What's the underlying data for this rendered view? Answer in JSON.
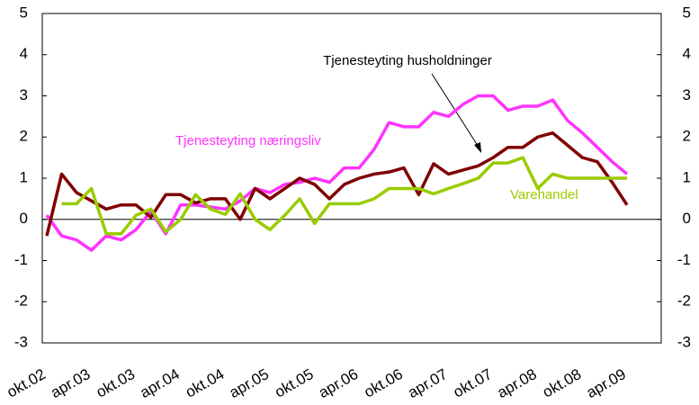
{
  "chart_data": {
    "type": "line",
    "categories": [
      "okt.02",
      null,
      null,
      "apr.03",
      null,
      null,
      "okt.03",
      null,
      null,
      "apr.04",
      null,
      null,
      "okt.04",
      null,
      null,
      "apr.05",
      null,
      null,
      "okt.05",
      null,
      null,
      "apr.06",
      null,
      null,
      "okt.06",
      null,
      null,
      "apr.07",
      null,
      null,
      "okt.07",
      null,
      null,
      "apr.08",
      null,
      null,
      "okt.08",
      null,
      null,
      "apr.09"
    ],
    "series": [
      {
        "name": "Tjenesteyting næringsliv",
        "color": "#ff33ff",
        "values": [
          0.1,
          -0.4,
          -0.5,
          -0.75,
          -0.4,
          -0.5,
          -0.25,
          0.2,
          -0.35,
          0.35,
          0.35,
          0.3,
          0.25,
          0.45,
          0.75,
          0.65,
          0.85,
          0.9,
          1.0,
          0.9,
          1.25,
          1.25,
          1.7,
          2.35,
          2.25,
          2.25,
          2.6,
          2.5,
          2.8,
          3.0,
          3.0,
          2.65,
          2.75,
          2.75,
          2.9,
          2.4,
          2.1,
          1.75,
          1.4,
          1.1
        ]
      },
      {
        "name": "Tjenesteyting husholdninger",
        "color": "#800000",
        "values": [
          -0.4,
          1.1,
          0.65,
          0.45,
          0.25,
          0.35,
          0.35,
          0.05,
          0.6,
          0.6,
          0.4,
          0.5,
          0.5,
          0.0,
          0.75,
          0.5,
          0.75,
          1.0,
          0.85,
          0.5,
          0.85,
          1.0,
          1.1,
          1.15,
          1.25,
          0.6,
          1.35,
          1.1,
          1.2,
          1.3,
          1.5,
          1.75,
          1.75,
          2.0,
          2.1,
          1.8,
          1.5,
          1.4,
          0.9,
          0.35
        ]
      },
      {
        "name": "Varehandel",
        "color": "#99cc00",
        "values": [
          null,
          0.38,
          0.38,
          0.75,
          -0.35,
          -0.35,
          0.1,
          0.25,
          -0.3,
          0.0,
          0.6,
          0.25,
          0.12,
          0.62,
          0.0,
          -0.25,
          0.1,
          0.5,
          -0.1,
          0.38,
          0.38,
          0.38,
          0.5,
          0.75,
          0.75,
          0.75,
          0.62,
          0.75,
          0.87,
          1.0,
          1.37,
          1.37,
          1.5,
          0.75,
          1.1,
          1.0,
          1.0,
          1.0,
          1.0,
          1.0
        ]
      }
    ],
    "ylim": [
      -3,
      5
    ],
    "yticks": [
      -3,
      -2,
      -1,
      0,
      1,
      2,
      3,
      4,
      5
    ],
    "y2lim": [
      -3,
      5
    ],
    "y2ticks": [
      -3,
      -2,
      -1,
      0,
      1,
      2,
      3,
      4,
      5
    ]
  }
}
